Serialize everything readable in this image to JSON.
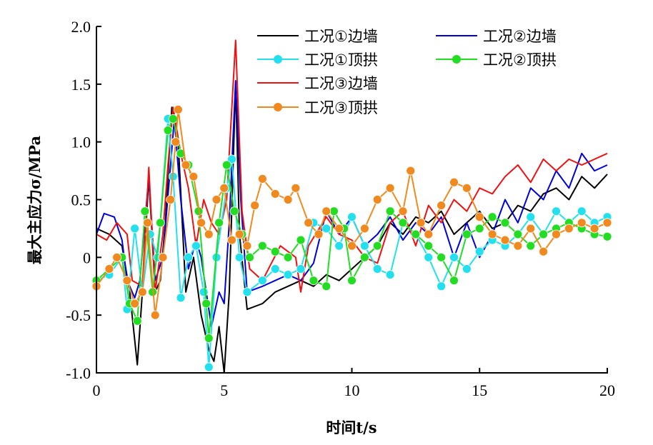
{
  "chart_data": {
    "type": "line",
    "title": "",
    "xlabel": "时间t/s",
    "ylabel": "最大主应力σ/MPa",
    "xlim": [
      0,
      20
    ],
    "ylim": [
      -1.0,
      2.0
    ],
    "xticks": [
      "0",
      "5",
      "10",
      "15",
      "20"
    ],
    "yticks": [
      "-1.0",
      "-0.5",
      "0",
      "0.5",
      "1.0",
      "1.5",
      "2.0"
    ],
    "legend_position": "top-right",
    "series": [
      {
        "name": "工况①边墙",
        "color": "#000000",
        "marker": false,
        "x": [
          0,
          0.5,
          1,
          1.3,
          1.6,
          1.8,
          2.05,
          2.3,
          2.5,
          2.7,
          2.95,
          3.2,
          3.5,
          3.8,
          4.1,
          4.4,
          4.6,
          4.8,
          5.0,
          5.2,
          5.45,
          5.6,
          5.9,
          6.5,
          7,
          7.5,
          8,
          8.5,
          9,
          9.5,
          10,
          10.5,
          11,
          11.5,
          12,
          12.5,
          13,
          13.5,
          14,
          14.5,
          15,
          15.5,
          16,
          16.5,
          17,
          17.5,
          18,
          18.5,
          19,
          19.5,
          20
        ],
        "y": [
          0.25,
          0.2,
          0.1,
          -0.3,
          -0.93,
          -0.3,
          0.7,
          -0.3,
          -0.2,
          0.3,
          1.3,
          1.0,
          -0.3,
          0.0,
          -0.5,
          -0.8,
          -0.9,
          -0.6,
          -1.0,
          -0.3,
          1.5,
          0.2,
          -0.45,
          -0.4,
          -0.3,
          -0.25,
          -0.2,
          -0.25,
          -0.15,
          -0.2,
          -0.1,
          0.0,
          0.1,
          0.3,
          0.2,
          0.35,
          0.3,
          0.4,
          0.2,
          0.3,
          0.4,
          0.25,
          0.3,
          0.45,
          0.4,
          0.55,
          0.6,
          0.5,
          0.7,
          0.6,
          0.72
        ]
      },
      {
        "name": "工况②边墙",
        "color": "#0000dd",
        "marker": false,
        "x": [
          0,
          0.3,
          0.7,
          1.0,
          1.2,
          1.5,
          1.7,
          2.05,
          2.3,
          2.6,
          2.9,
          3.05,
          3.3,
          3.6,
          3.9,
          4.1,
          4.3,
          4.5,
          4.8,
          5.0,
          5.2,
          5.45,
          5.65,
          5.9,
          6.5,
          7,
          7.5,
          8,
          8.5,
          9,
          9.5,
          10,
          10.5,
          11,
          11.5,
          12,
          12.5,
          13,
          13.5,
          14,
          14.5,
          15,
          15.5,
          16,
          16.5,
          17,
          17.5,
          18,
          18.5,
          19,
          19.5,
          20
        ],
        "y": [
          0.2,
          0.38,
          0.35,
          0.15,
          -0.2,
          -0.35,
          -0.2,
          0.7,
          -0.2,
          0.0,
          0.8,
          1.2,
          0.5,
          -0.1,
          0.15,
          0.0,
          -0.3,
          -0.6,
          -0.3,
          -0.4,
          0.3,
          1.53,
          0.5,
          -0.3,
          -0.25,
          -0.2,
          -0.15,
          -0.2,
          -0.05,
          0.4,
          0.2,
          0.35,
          0.1,
          0.2,
          0.35,
          0.15,
          0.3,
          0.2,
          0.35,
          0.0,
          0.3,
          0.0,
          0.2,
          0.5,
          0.3,
          0.6,
          0.5,
          0.75,
          0.6,
          0.9,
          0.75,
          0.8
        ]
      },
      {
        "name": "工况①顶拱",
        "color": "#22e0ee",
        "marker": true,
        "x": [
          0,
          0.5,
          1.0,
          1.2,
          1.5,
          1.8,
          2.1,
          2.4,
          2.8,
          3.0,
          3.3,
          3.6,
          3.9,
          4.2,
          4.4,
          4.7,
          5.1,
          5.3,
          5.6,
          5.9,
          6.5,
          7.0,
          7.5,
          8.0,
          8.5,
          9.0,
          9.5,
          10,
          10.5,
          11,
          11.5,
          12,
          12.5,
          13,
          13.5,
          14,
          14.5,
          15,
          15.5,
          16,
          16.5,
          17,
          17.5,
          18,
          18.5,
          19,
          19.5,
          20
        ],
        "y": [
          -0.2,
          -0.15,
          0.0,
          -0.45,
          0.25,
          -0.3,
          0.2,
          0.0,
          1.2,
          0.7,
          -0.35,
          0.0,
          0.1,
          -0.3,
          -0.95,
          0.0,
          0.6,
          0.85,
          0.0,
          -0.3,
          -0.2,
          -0.1,
          -0.15,
          -0.1,
          0.3,
          0.25,
          0.1,
          0.35,
          0.1,
          -0.1,
          -0.15,
          0.3,
          0.2,
          0.0,
          -0.25,
          0.0,
          -0.1,
          0.05,
          0.15,
          0.1,
          0.2,
          0.35,
          0.2,
          0.4,
          0.3,
          0.4,
          0.3,
          0.35
        ]
      },
      {
        "name": "工况②顶拱",
        "color": "#22dd22",
        "marker": true,
        "x": [
          0,
          0.5,
          1.0,
          1.3,
          1.6,
          1.9,
          2.2,
          2.5,
          2.8,
          3.0,
          3.3,
          3.6,
          4.0,
          4.3,
          4.4,
          4.8,
          5.1,
          5.4,
          5.7,
          6.0,
          6.5,
          7.0,
          7.5,
          8.0,
          8.5,
          9,
          9.3,
          9.7,
          10,
          10.5,
          11,
          11.5,
          12,
          12.5,
          13,
          13.5,
          14,
          14.5,
          15,
          15.5,
          16,
          16.5,
          17,
          17.5,
          18,
          18.5,
          19,
          19.5,
          20
        ],
        "y": [
          -0.2,
          -0.1,
          0.0,
          -0.4,
          -0.55,
          0.4,
          -0.3,
          0.3,
          1.1,
          1.2,
          0.9,
          0.8,
          0.4,
          -0.4,
          -0.7,
          0.3,
          0.8,
          0.4,
          0.2,
          0.0,
          0.1,
          0.05,
          0.0,
          0.15,
          -0.2,
          -0.25,
          0.4,
          0.25,
          -0.2,
          0.0,
          0.1,
          0.4,
          0.3,
          0.2,
          0.1,
          0.0,
          -0.2,
          0.2,
          0.25,
          0.35,
          0.3,
          0.2,
          0.1,
          0.2,
          0.25,
          0.3,
          0.25,
          0.2,
          0.18
        ]
      },
      {
        "name": "工况③边墙",
        "color": "#ee1111",
        "marker": false,
        "x": [
          0,
          0.4,
          0.8,
          1.2,
          1.4,
          1.8,
          2.05,
          2.3,
          2.6,
          2.8,
          3.0,
          3.3,
          3.6,
          3.9,
          4.2,
          4.5,
          4.8,
          5.1,
          5.45,
          5.7,
          6.0,
          6.5,
          7.2,
          7.8,
          8.0,
          8.3,
          9.0,
          9.5,
          10,
          10.5,
          11,
          11.5,
          12,
          12.5,
          13,
          13.5,
          14,
          14.5,
          15,
          15.5,
          16,
          16.5,
          17,
          17.5,
          18,
          18.5,
          19,
          19.5,
          20
        ],
        "y": [
          0.2,
          0.15,
          0.3,
          0.2,
          -0.2,
          -0.25,
          0.78,
          -0.3,
          0.2,
          0.8,
          1.3,
          0.9,
          0.6,
          0.1,
          0.5,
          0.3,
          0.2,
          0.5,
          1.88,
          0.4,
          -0.1,
          -0.2,
          0.1,
          0.0,
          -0.3,
          0.1,
          0.35,
          0.2,
          0.15,
          0.0,
          -0.05,
          0.3,
          0.4,
          0.1,
          0.45,
          0.3,
          0.5,
          0.4,
          0.6,
          0.55,
          0.7,
          0.8,
          0.65,
          0.85,
          0.75,
          0.85,
          0.8,
          0.85,
          0.9
        ]
      },
      {
        "name": "工况③顶拱",
        "color": "#f08a1e",
        "marker": true,
        "x": [
          0,
          0.5,
          0.8,
          1.2,
          1.5,
          1.8,
          2.0,
          2.3,
          2.6,
          2.9,
          3.1,
          3.2,
          3.5,
          3.8,
          4.1,
          4.4,
          4.7,
          5.0,
          5.3,
          5.6,
          5.9,
          6.2,
          6.5,
          7.0,
          7.5,
          7.8,
          8.3,
          8.7,
          9.0,
          9.5,
          10,
          10.5,
          11,
          11.5,
          12,
          12.3,
          12.7,
          13,
          13.5,
          14,
          14.5,
          15,
          15.5,
          16,
          16.5,
          17,
          17.5,
          18,
          18.5,
          19,
          19.5,
          20
        ],
        "y": [
          -0.25,
          -0.1,
          0.0,
          -0.2,
          -0.4,
          -0.3,
          0.3,
          -0.5,
          0.0,
          0.5,
          1.0,
          1.28,
          0.8,
          0.7,
          0.3,
          0.2,
          0.5,
          0.6,
          0.15,
          0.2,
          0.1,
          0.45,
          0.68,
          0.55,
          0.5,
          0.6,
          0.3,
          0.2,
          0.4,
          0.25,
          0.1,
          0.25,
          0.5,
          0.6,
          0.4,
          0.75,
          0.3,
          0.2,
          0.45,
          0.65,
          0.6,
          0.35,
          0.2,
          0.15,
          0.1,
          0.25,
          0.05,
          0.2,
          0.25,
          0.3,
          0.25,
          0.3
        ]
      }
    ]
  }
}
